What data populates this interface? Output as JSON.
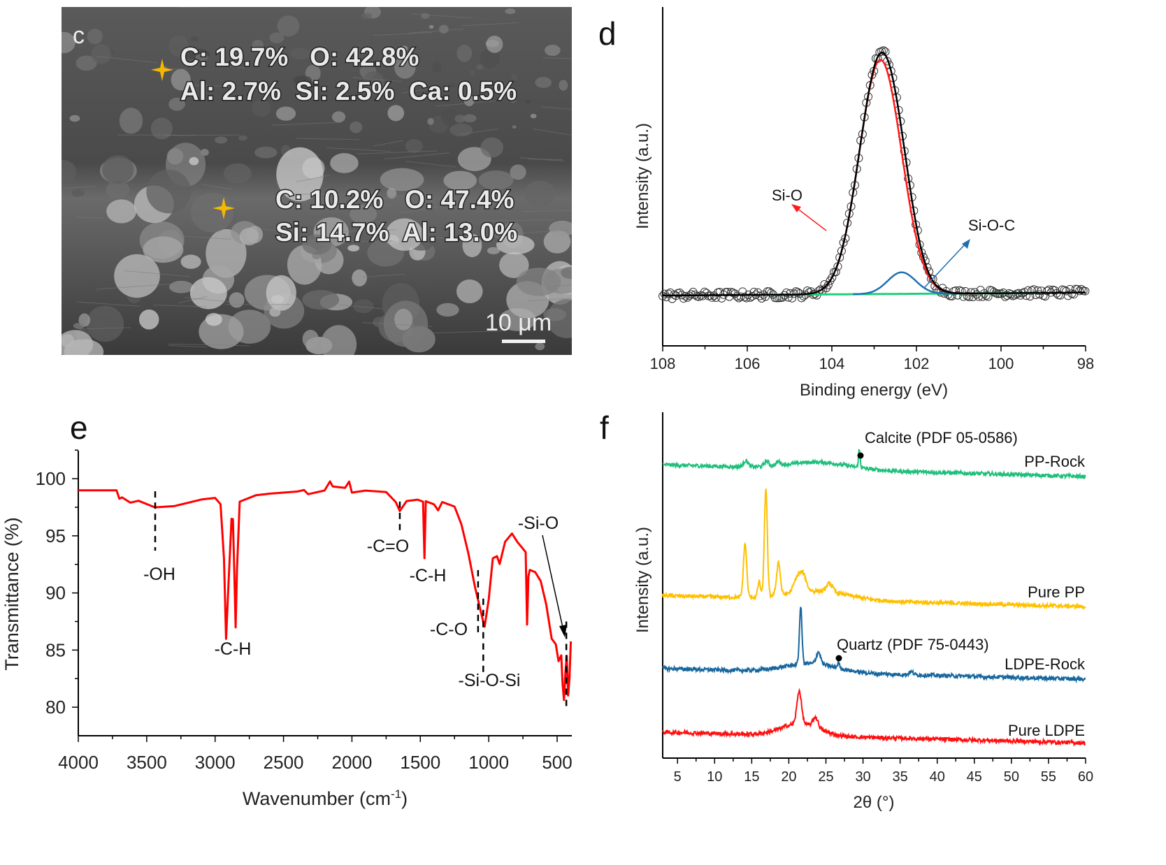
{
  "panels": {
    "c": {
      "panel_label": "c",
      "points": [
        {
          "line1": "C: 19.7%   O: 42.8%",
          "line2": "Al: 2.7%  Si: 2.5%  Ca: 0.5%"
        },
        {
          "line1": "C: 10.2%   O: 47.4%",
          "line2": "Si: 14.7%  Al: 13.0%"
        }
      ],
      "scale_bar": "10 μm",
      "marker_color": "#f5b800"
    }
  },
  "chart_data": [
    {
      "panel_label": "d",
      "type": "line",
      "xlabel": "Binding energy (eV)",
      "ylabel": "Intensity (a.u.)",
      "xlim": [
        108,
        98
      ],
      "x_ticks": [
        "108",
        "106",
        "104",
        "102",
        "100",
        "98"
      ],
      "grid": false,
      "components": [
        {
          "name": "Si-O",
          "center": 102.85,
          "amplitude": 0.955,
          "sigma": 0.5,
          "color": "#ff1a1a"
        },
        {
          "name": "Si-O-C",
          "center": 102.35,
          "amplitude": 0.088,
          "sigma": 0.33,
          "color": "#1f6fb0"
        }
      ],
      "background": {
        "color": "#1fd07a",
        "start": [
          108,
          0.0
        ],
        "end": [
          98,
          0.012
        ]
      },
      "envelope_color": "#000000",
      "raw_data_marker": "open-circle",
      "annotations": [
        {
          "text": "Si-O",
          "color": "#ff1a1a"
        },
        {
          "text": "Si-O-C",
          "color": "#1f6fb0"
        }
      ]
    },
    {
      "panel_label": "e",
      "type": "line",
      "xlabel": "Wavenumber (cm",
      "xlabel_sup": "-1",
      "xlabel_end": ")",
      "ylabel": "Transmittance (%)",
      "xlim": [
        4000,
        390
      ],
      "ylim": [
        77.5,
        102.5
      ],
      "x_ticks": [
        4000,
        3500,
        3000,
        2500,
        2000,
        1500,
        1000,
        500
      ],
      "y_ticks": [
        80,
        85,
        90,
        95,
        100
      ],
      "grid": false,
      "color": "#ff0000",
      "x": [
        4000,
        3720,
        3700,
        3680,
        3620,
        3560,
        3440,
        3300,
        3100,
        3000,
        2960,
        2935,
        2920,
        2905,
        2880,
        2870,
        2860,
        2850,
        2840,
        2820,
        2700,
        2600,
        2400,
        2350,
        2320,
        2200,
        2160,
        2140,
        2050,
        2020,
        2000,
        1900,
        1750,
        1680,
        1650,
        1600,
        1520,
        1480,
        1470,
        1460,
        1400,
        1370,
        1340,
        1250,
        1200,
        1150,
        1100,
        1080,
        1040,
        1030,
        1000,
        970,
        940,
        920,
        880,
        830,
        790,
        760,
        730,
        720,
        710,
        700,
        660,
        620,
        580,
        540,
        510,
        490,
        470,
        460,
        450,
        440,
        430,
        420,
        410,
        400
      ],
      "y": [
        99.0,
        99.0,
        98.2,
        98.4,
        97.9,
        98.1,
        97.5,
        97.6,
        98.2,
        98.3,
        97.8,
        93.0,
        86.0,
        90.0,
        96.5,
        96.5,
        92.0,
        87.0,
        92.0,
        98.0,
        98.6,
        98.7,
        98.9,
        99.0,
        98.6,
        99.0,
        99.8,
        99.3,
        99.2,
        99.7,
        98.8,
        99.0,
        98.8,
        98.0,
        97.2,
        98.0,
        98.2,
        98.0,
        93.0,
        98.0,
        97.8,
        97.2,
        98.0,
        97.6,
        96.0,
        93.5,
        90.5,
        89.5,
        87.5,
        87.0,
        89.5,
        93.0,
        93.2,
        92.5,
        94.5,
        95.2,
        94.5,
        94.0,
        93.6,
        87.2,
        91.5,
        92.0,
        91.8,
        91.0,
        89.0,
        86.0,
        85.5,
        84.0,
        84.5,
        82.0,
        80.6,
        83.0,
        84.5,
        81.0,
        82.5,
        85.8
      ],
      "annotations": [
        {
          "text": "-OH",
          "x": 3438,
          "y_range": [
            93.7,
            98.9
          ]
        },
        {
          "text": "-C-H",
          "x": 2920
        },
        {
          "text": "-C=O",
          "x": 1650,
          "y_range": [
            95.5,
            98.0
          ]
        },
        {
          "text": "-C-H",
          "x": 1470
        },
        {
          "text": "-C-O",
          "x": 1078,
          "y_range": [
            86.5,
            92.0
          ]
        },
        {
          "text": "-Si-O-Si",
          "x": 1040,
          "y_range": [
            82.8,
            89.5
          ]
        },
        {
          "text": "-Si-O",
          "x": 433,
          "y_range": [
            79.9,
            87.5
          ]
        }
      ]
    },
    {
      "panel_label": "f",
      "type": "line",
      "xlabel": "2θ (°)",
      "ylabel": "Intensity (a.u.)",
      "xlim": [
        3,
        60
      ],
      "x_ticks": [
        5,
        10,
        15,
        20,
        25,
        30,
        35,
        40,
        45,
        50,
        55,
        60
      ],
      "grid": false,
      "series": [
        {
          "name": "PP-Rock",
          "color": "#1fbf7c",
          "baseline": [
            84.8,
            81.4
          ],
          "peaks": [
            [
              14.2,
              1.8,
              0.3
            ],
            [
              17.0,
              1.5,
              0.3
            ],
            [
              18.6,
              1.0,
              0.3
            ],
            [
              24.0,
              2.0,
              4.0
            ],
            [
              29.5,
              5.0,
              0.12
            ]
          ]
        },
        {
          "name": "Pure PP",
          "color": "#ffc000",
          "baseline": [
            47.0,
            43.8
          ],
          "peaks": [
            [
              14.1,
              15.5,
              0.22
            ],
            [
              16.0,
              4.5,
              0.18
            ],
            [
              16.9,
              31.0,
              0.2
            ],
            [
              18.6,
              9.5,
              0.25
            ],
            [
              21.2,
              4.5,
              0.5
            ],
            [
              22.0,
              4.0,
              0.4
            ],
            [
              25.5,
              2.5,
              0.4
            ],
            [
              24.0,
              2.5,
              4.0
            ]
          ]
        },
        {
          "name": "LDPE-Rock",
          "color": "#17679e",
          "baseline": [
            25.9,
            22.8
          ],
          "peaks": [
            [
              21.6,
              16.5,
              0.17
            ],
            [
              24.0,
              3.5,
              0.3
            ],
            [
              26.7,
              1.5,
              0.15
            ],
            [
              23.0,
              2.5,
              3.5
            ],
            [
              36.5,
              0.8,
              0.3
            ]
          ]
        },
        {
          "name": "Pure LDPE",
          "color": "#ff1010",
          "baseline": [
            7.5,
            4.4
          ],
          "peaks": [
            [
              21.4,
              9.5,
              0.3
            ],
            [
              23.6,
              3.0,
              0.35
            ],
            [
              21.5,
              3.5,
              2.5
            ]
          ]
        }
      ],
      "annotations": [
        {
          "text": "Calcite (PDF 05-0586)",
          "x": 29.5
        },
        {
          "text": "Quartz (PDF 75-0443)",
          "x": 26.7
        }
      ]
    }
  ]
}
